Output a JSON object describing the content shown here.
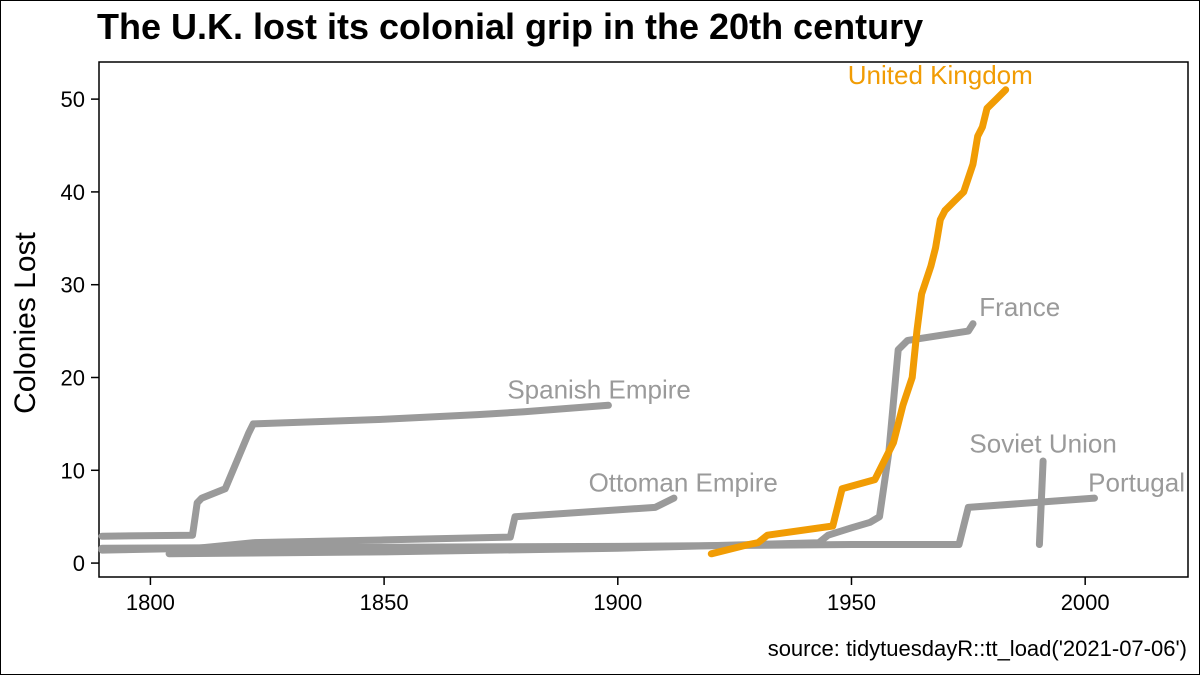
{
  "chart_data": {
    "type": "line",
    "title": "The U.K. lost its colonial grip in the 20th century",
    "xlabel": "",
    "ylabel": "Colonies Lost",
    "xlim": [
      1789,
      2022
    ],
    "ylim": [
      -1.5,
      54
    ],
    "xticks": [
      1800,
      1850,
      1900,
      1950,
      2000
    ],
    "yticks": [
      0,
      10,
      20,
      30,
      40,
      50
    ],
    "grid": false,
    "legend": "none (series labeled directly)",
    "caption": "source: tidytuesdayR::tt_load('2021-07-06')",
    "colors": {
      "highlight": "#f19c04",
      "other": "#9a9a9a",
      "axis": "#000000"
    },
    "series": [
      {
        "name": "Spanish Empire",
        "highlight": false,
        "label_at": [
          1896,
          18.7
        ],
        "points": [
          [
            1788,
            2.9
          ],
          [
            1809,
            3
          ],
          [
            1810,
            6.5
          ],
          [
            1811,
            7
          ],
          [
            1816,
            8
          ],
          [
            1821,
            14
          ],
          [
            1822,
            15
          ],
          [
            1850,
            15.5
          ],
          [
            1870,
            16
          ],
          [
            1880,
            16.3
          ],
          [
            1898,
            17
          ]
        ]
      },
      {
        "name": "Ottoman Empire",
        "highlight": false,
        "label_at": [
          1914,
          8.7
        ],
        "points": [
          [
            1788,
            1.4
          ],
          [
            1810,
            1.6
          ],
          [
            1822,
            2.2
          ],
          [
            1850,
            2.5
          ],
          [
            1877,
            2.8
          ],
          [
            1878,
            5
          ],
          [
            1908,
            6
          ],
          [
            1912,
            7
          ]
        ]
      },
      {
        "name": "France",
        "highlight": false,
        "label_at": [
          1986,
          27.6
        ],
        "points": [
          [
            1804,
            1
          ],
          [
            1850,
            1.2
          ],
          [
            1900,
            1.6
          ],
          [
            1943,
            2.2
          ],
          [
            1945,
            3
          ],
          [
            1950,
            3.8
          ],
          [
            1954,
            4.4
          ],
          [
            1956,
            5
          ],
          [
            1958,
            12
          ],
          [
            1960,
            23
          ],
          [
            1962,
            24
          ],
          [
            1975,
            25
          ],
          [
            1976,
            25.8
          ]
        ]
      },
      {
        "name": "Portugal",
        "highlight": false,
        "label_at": [
          2011,
          8.7
        ],
        "points": [
          [
            1788,
            1.6
          ],
          [
            1900,
            1.8
          ],
          [
            1950,
            2
          ],
          [
            1973,
            2
          ],
          [
            1975,
            6
          ],
          [
            2002,
            7
          ]
        ]
      },
      {
        "name": "Soviet Union",
        "highlight": false,
        "label_at": [
          1991,
          12.9
        ],
        "points": [
          [
            1990.2,
            2
          ],
          [
            1991,
            11
          ]
        ]
      },
      {
        "name": "United Kingdom",
        "highlight": true,
        "label_at": [
          1969,
          52.6
        ],
        "points": [
          [
            1920,
            1
          ],
          [
            1928,
            2
          ],
          [
            1930,
            2.2
          ],
          [
            1932,
            3
          ],
          [
            1946,
            4
          ],
          [
            1948,
            8
          ],
          [
            1955,
            9
          ],
          [
            1957,
            11
          ],
          [
            1959,
            13
          ],
          [
            1961,
            17
          ],
          [
            1963,
            20
          ],
          [
            1964,
            25
          ],
          [
            1965,
            29
          ],
          [
            1967,
            32
          ],
          [
            1968,
            34
          ],
          [
            1969,
            37
          ],
          [
            1970,
            38
          ],
          [
            1972,
            39
          ],
          [
            1974,
            40
          ],
          [
            1976,
            43
          ],
          [
            1977,
            46
          ],
          [
            1978,
            47
          ],
          [
            1979,
            49
          ],
          [
            1981,
            50
          ],
          [
            1983,
            51
          ]
        ]
      }
    ]
  }
}
